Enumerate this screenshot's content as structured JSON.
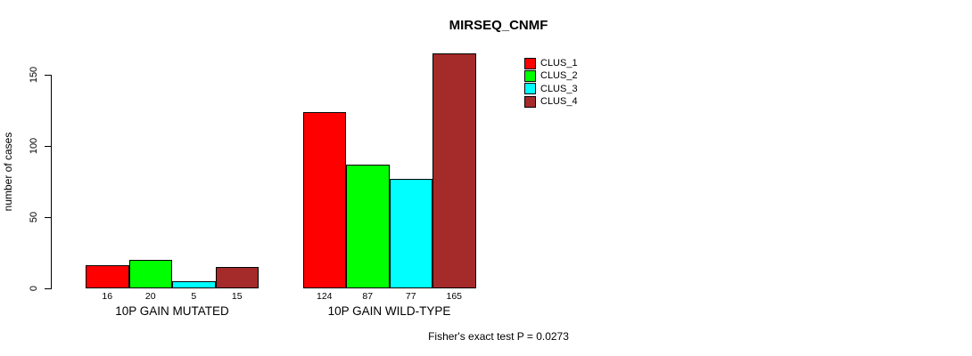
{
  "chart_data": {
    "type": "bar",
    "title": "MIRSEQ_CNMF",
    "ylabel": "number of cases",
    "yticks": [
      0,
      50,
      100,
      150
    ],
    "ylim": [
      0,
      165
    ],
    "grid": false,
    "legend_position": "top-right",
    "categories": [
      "10P GAIN MUTATED",
      "10P GAIN WILD-TYPE"
    ],
    "series": [
      {
        "name": "CLUS_1",
        "color": "#FF0000",
        "values": [
          16,
          124
        ]
      },
      {
        "name": "CLUS_2",
        "color": "#00FF00",
        "values": [
          20,
          87
        ]
      },
      {
        "name": "CLUS_3",
        "color": "#00FFFF",
        "values": [
          5,
          77
        ]
      },
      {
        "name": "CLUS_4",
        "color": "#A52A2A",
        "values": [
          15,
          165
        ]
      }
    ],
    "annotation": "Fisher's exact test P = 0.0273"
  }
}
